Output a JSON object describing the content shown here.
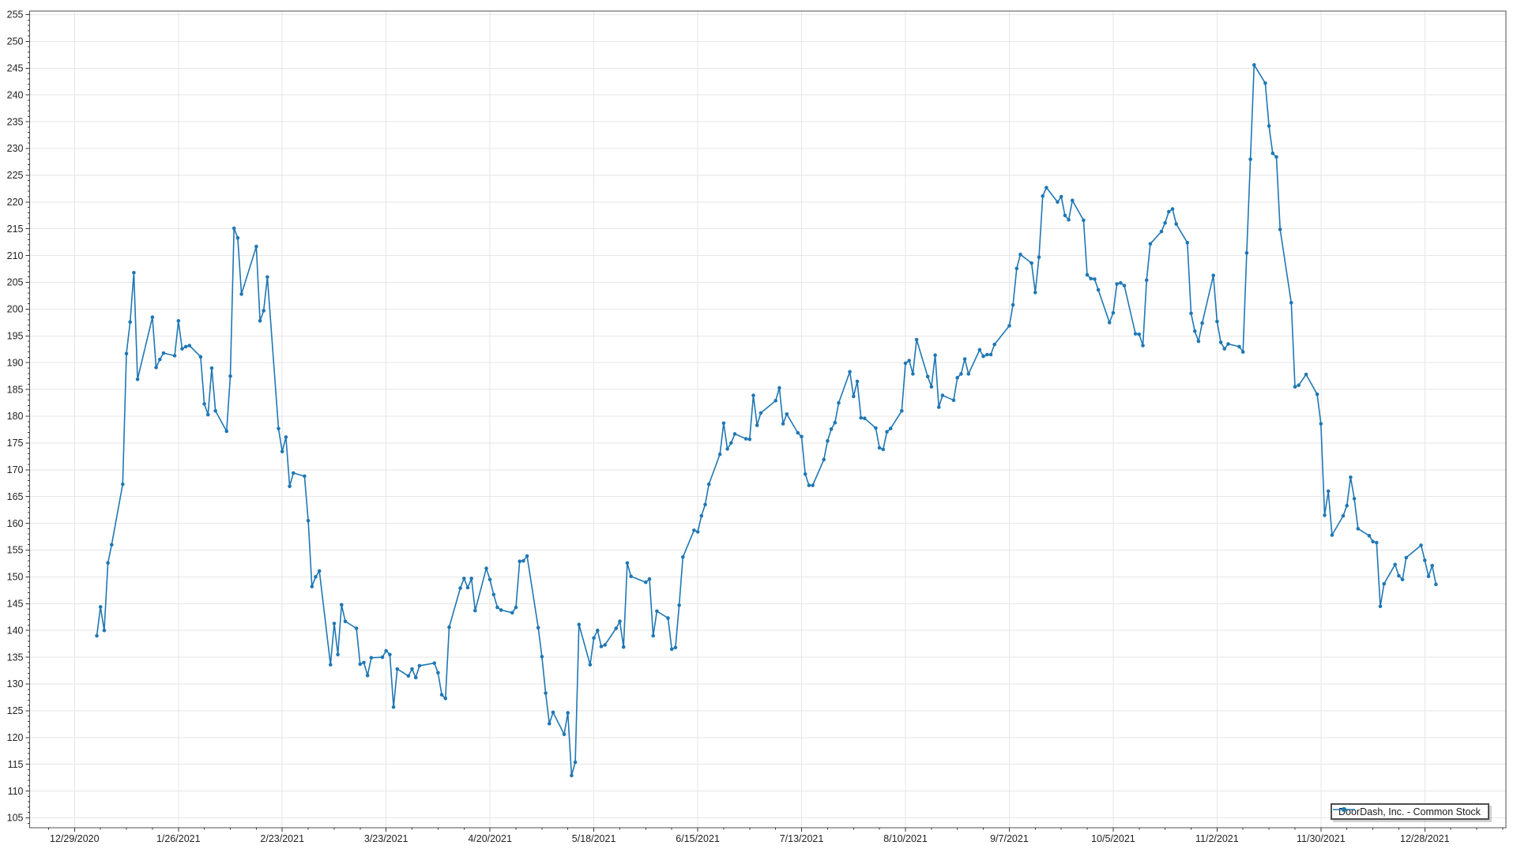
{
  "chart_data": {
    "type": "line",
    "title": "",
    "legend": {
      "label": "DoorDash, Inc. - Common Stock",
      "position": "lower-right"
    },
    "colors": {
      "line": "#1f77b4",
      "grid": "#e6e6e6",
      "frame": "#4f4f4f",
      "tick": "#333333",
      "text": "#222222"
    },
    "x_axis": {
      "type": "date",
      "tick_labels": [
        "12/29/2020",
        "1/26/2021",
        "2/23/2021",
        "3/23/2021",
        "4/20/2021",
        "5/18/2021",
        "6/15/2021",
        "7/13/2021",
        "8/10/2021",
        "9/7/2021",
        "10/5/2021",
        "11/2/2021",
        "11/30/2021",
        "12/28/2021"
      ],
      "tick_dates": [
        "2020-12-29",
        "2021-01-26",
        "2021-02-23",
        "2021-03-23",
        "2021-04-20",
        "2021-05-18",
        "2021-06-15",
        "2021-07-13",
        "2021-08-10",
        "2021-09-07",
        "2021-10-05",
        "2021-11-02",
        "2021-11-30",
        "2021-12-28"
      ]
    },
    "y_axis": {
      "min": 105,
      "max": 255,
      "tick_step": 5
    },
    "series": [
      {
        "name": "DoorDash, Inc. - Common Stock",
        "color": "#1f77b4",
        "marker": "circle",
        "dates": [
          "2021-01-04",
          "2021-01-05",
          "2021-01-06",
          "2021-01-07",
          "2021-01-08",
          "2021-01-11",
          "2021-01-12",
          "2021-01-13",
          "2021-01-14",
          "2021-01-15",
          "2021-01-19",
          "2021-01-20",
          "2021-01-21",
          "2021-01-22",
          "2021-01-25",
          "2021-01-26",
          "2021-01-27",
          "2021-01-28",
          "2021-01-29",
          "2021-02-01",
          "2021-02-02",
          "2021-02-03",
          "2021-02-04",
          "2021-02-05",
          "2021-02-08",
          "2021-02-09",
          "2021-02-10",
          "2021-02-11",
          "2021-02-12",
          "2021-02-16",
          "2021-02-17",
          "2021-02-18",
          "2021-02-19",
          "2021-02-22",
          "2021-02-23",
          "2021-02-24",
          "2021-02-25",
          "2021-02-26",
          "2021-03-01",
          "2021-03-02",
          "2021-03-03",
          "2021-03-04",
          "2021-03-05",
          "2021-03-08",
          "2021-03-09",
          "2021-03-10",
          "2021-03-11",
          "2021-03-12",
          "2021-03-15",
          "2021-03-16",
          "2021-03-17",
          "2021-03-18",
          "2021-03-19",
          "2021-03-22",
          "2021-03-23",
          "2021-03-24",
          "2021-03-25",
          "2021-03-26",
          "2021-03-29",
          "2021-03-30",
          "2021-03-31",
          "2021-04-01",
          "2021-04-05",
          "2021-04-06",
          "2021-04-07",
          "2021-04-08",
          "2021-04-09",
          "2021-04-12",
          "2021-04-13",
          "2021-04-14",
          "2021-04-15",
          "2021-04-16",
          "2021-04-19",
          "2021-04-20",
          "2021-04-21",
          "2021-04-22",
          "2021-04-23",
          "2021-04-26",
          "2021-04-27",
          "2021-04-28",
          "2021-04-29",
          "2021-04-30",
          "2021-05-03",
          "2021-05-04",
          "2021-05-05",
          "2021-05-06",
          "2021-05-07",
          "2021-05-10",
          "2021-05-11",
          "2021-05-12",
          "2021-05-13",
          "2021-05-14",
          "2021-05-17",
          "2021-05-18",
          "2021-05-19",
          "2021-05-20",
          "2021-05-21",
          "2021-05-24",
          "2021-05-25",
          "2021-05-26",
          "2021-05-27",
          "2021-05-28",
          "2021-06-01",
          "2021-06-02",
          "2021-06-03",
          "2021-06-04",
          "2021-06-07",
          "2021-06-08",
          "2021-06-09",
          "2021-06-10",
          "2021-06-11",
          "2021-06-14",
          "2021-06-15",
          "2021-06-16",
          "2021-06-17",
          "2021-06-18",
          "2021-06-21",
          "2021-06-22",
          "2021-06-23",
          "2021-06-24",
          "2021-06-25",
          "2021-06-28",
          "2021-06-29",
          "2021-06-30",
          "2021-07-01",
          "2021-07-02",
          "2021-07-06",
          "2021-07-07",
          "2021-07-08",
          "2021-07-09",
          "2021-07-12",
          "2021-07-13",
          "2021-07-14",
          "2021-07-15",
          "2021-07-16",
          "2021-07-19",
          "2021-07-20",
          "2021-07-21",
          "2021-07-22",
          "2021-07-23",
          "2021-07-26",
          "2021-07-27",
          "2021-07-28",
          "2021-07-29",
          "2021-07-30",
          "2021-08-02",
          "2021-08-03",
          "2021-08-04",
          "2021-08-05",
          "2021-08-06",
          "2021-08-09",
          "2021-08-10",
          "2021-08-11",
          "2021-08-12",
          "2021-08-13",
          "2021-08-16",
          "2021-08-17",
          "2021-08-18",
          "2021-08-19",
          "2021-08-20",
          "2021-08-23",
          "2021-08-24",
          "2021-08-25",
          "2021-08-26",
          "2021-08-27",
          "2021-08-30",
          "2021-08-31",
          "2021-09-01",
          "2021-09-02",
          "2021-09-03",
          "2021-09-07",
          "2021-09-08",
          "2021-09-09",
          "2021-09-10",
          "2021-09-13",
          "2021-09-14",
          "2021-09-15",
          "2021-09-16",
          "2021-09-17",
          "2021-09-20",
          "2021-09-21",
          "2021-09-22",
          "2021-09-23",
          "2021-09-24",
          "2021-09-27",
          "2021-09-28",
          "2021-09-29",
          "2021-09-30",
          "2021-10-01",
          "2021-10-04",
          "2021-10-05",
          "2021-10-06",
          "2021-10-07",
          "2021-10-08",
          "2021-10-11",
          "2021-10-12",
          "2021-10-13",
          "2021-10-14",
          "2021-10-15",
          "2021-10-18",
          "2021-10-19",
          "2021-10-20",
          "2021-10-21",
          "2021-10-22",
          "2021-10-25",
          "2021-10-26",
          "2021-10-27",
          "2021-10-28",
          "2021-10-29",
          "2021-11-01",
          "2021-11-02",
          "2021-11-03",
          "2021-11-04",
          "2021-11-05",
          "2021-11-08",
          "2021-11-09",
          "2021-11-10",
          "2021-11-11",
          "2021-11-12",
          "2021-11-15",
          "2021-11-16",
          "2021-11-17",
          "2021-11-18",
          "2021-11-19",
          "2021-11-22",
          "2021-11-23",
          "2021-11-24",
          "2021-11-26",
          "2021-11-29",
          "2021-11-30",
          "2021-12-01",
          "2021-12-02",
          "2021-12-03",
          "2021-12-06",
          "2021-12-07",
          "2021-12-08",
          "2021-12-09",
          "2021-12-10",
          "2021-12-13",
          "2021-12-14",
          "2021-12-15",
          "2021-12-16",
          "2021-12-17",
          "2021-12-20",
          "2021-12-21",
          "2021-12-22",
          "2021-12-23",
          "2021-12-27",
          "2021-12-28",
          "2021-12-29",
          "2021-12-30",
          "2021-12-31"
        ],
        "values": [
          139.0,
          144.4,
          140.0,
          152.6,
          156.0,
          167.3,
          191.7,
          197.6,
          206.8,
          186.9,
          198.5,
          189.1,
          190.6,
          191.8,
          191.3,
          197.8,
          192.6,
          193.0,
          193.2,
          191.1,
          182.3,
          180.3,
          189.0,
          181.0,
          177.2,
          187.5,
          215.1,
          213.3,
          202.8,
          211.7,
          197.8,
          199.7,
          206.0,
          177.7,
          173.4,
          176.1,
          166.9,
          169.4,
          168.8,
          160.5,
          148.2,
          150.0,
          151.1,
          133.6,
          141.3,
          135.5,
          144.8,
          141.7,
          140.4,
          133.7,
          134.0,
          131.6,
          134.9,
          135.0,
          136.2,
          135.5,
          125.7,
          132.8,
          131.5,
          132.8,
          131.2,
          133.4,
          133.9,
          132.1,
          128.0,
          127.3,
          140.6,
          147.9,
          149.7,
          148.0,
          149.7,
          143.7,
          151.6,
          149.5,
          146.7,
          144.3,
          143.8,
          143.3,
          144.3,
          152.9,
          153.0,
          153.9,
          140.5,
          135.1,
          128.3,
          122.6,
          124.7,
          120.6,
          124.6,
          112.9,
          115.4,
          141.1,
          133.6,
          138.6,
          140.0,
          137.0,
          137.3,
          140.4,
          141.7,
          136.9,
          152.6,
          150.1,
          149.0,
          149.6,
          139.0,
          143.6,
          142.3,
          136.5,
          136.8,
          144.7,
          153.7,
          158.7,
          158.4,
          161.4,
          163.5,
          167.3,
          172.9,
          178.7,
          173.9,
          175.0,
          176.7,
          175.8,
          175.7,
          183.9,
          178.3,
          180.6,
          182.9,
          185.3,
          178.6,
          180.4,
          176.9,
          176.2,
          169.2,
          167.1,
          167.1,
          171.9,
          175.4,
          177.6,
          178.8,
          182.5,
          188.3,
          183.7,
          186.5,
          179.7,
          179.6,
          177.8,
          174.1,
          173.8,
          177.1,
          177.7,
          181.0,
          189.9,
          190.4,
          187.9,
          194.3,
          187.4,
          185.5,
          191.4,
          181.7,
          183.9,
          183.0,
          187.2,
          187.9,
          190.7,
          187.9,
          192.4,
          191.2,
          191.5,
          191.5,
          193.4,
          196.9,
          200.8,
          207.6,
          210.2,
          208.6,
          203.1,
          209.7,
          221.1,
          222.7,
          220.0,
          221.0,
          217.5,
          216.7,
          220.3,
          216.6,
          206.4,
          205.7,
          205.6,
          203.6,
          197.5,
          199.3,
          204.7,
          204.9,
          204.4,
          195.4,
          195.3,
          193.2,
          205.4,
          212.2,
          214.5,
          216.1,
          218.2,
          218.7,
          215.9,
          212.4,
          199.2,
          195.9,
          194.0,
          197.4,
          206.3,
          197.7,
          193.8,
          192.6,
          193.5,
          193.0,
          192.0,
          210.5,
          228.0,
          245.6,
          242.2,
          234.2,
          229.1,
          228.4,
          214.9,
          201.2,
          185.5,
          185.8,
          187.8,
          184.1,
          178.6,
          161.5,
          166.0,
          157.8,
          161.4,
          163.3,
          168.6,
          164.6,
          159.0,
          157.7,
          156.6,
          156.4,
          144.5,
          148.7,
          152.3,
          150.2,
          149.5,
          153.6,
          155.9,
          153.1,
          150.1,
          152.1,
          148.6
        ]
      }
    ]
  }
}
